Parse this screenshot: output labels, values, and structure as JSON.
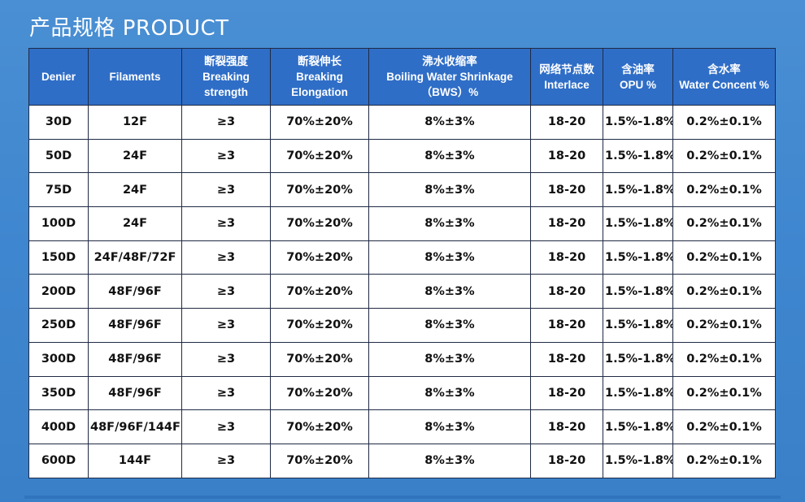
{
  "page_title": "产品规格 PRODUCT",
  "columns": [
    {
      "lines": [
        "Denier"
      ]
    },
    {
      "lines": [
        "Filaments"
      ]
    },
    {
      "lines": [
        "断裂强度",
        "Breaking",
        "strength"
      ]
    },
    {
      "lines": [
        "断裂伸长",
        "Breaking",
        "Elongation"
      ]
    },
    {
      "lines": [
        "沸水收缩率",
        "Boiling Water Shrinkage",
        "（BWS）%"
      ]
    },
    {
      "lines": [
        "网络节点数",
        "Interlace"
      ]
    },
    {
      "lines": [
        "含油率",
        "OPU %"
      ]
    },
    {
      "lines": [
        "含水率",
        "Water Concent %"
      ]
    }
  ],
  "rows": [
    [
      "30D",
      "12F",
      "≥3",
      "70%±20%",
      "8%±3%",
      "18-20",
      "1.5%-1.8%",
      "0.2%±0.1%"
    ],
    [
      "50D",
      "24F",
      "≥3",
      "70%±20%",
      "8%±3%",
      "18-20",
      "1.5%-1.8%",
      "0.2%±0.1%"
    ],
    [
      "75D",
      "24F",
      "≥3",
      "70%±20%",
      "8%±3%",
      "18-20",
      "1.5%-1.8%",
      "0.2%±0.1%"
    ],
    [
      "100D",
      "24F",
      "≥3",
      "70%±20%",
      "8%±3%",
      "18-20",
      "1.5%-1.8%",
      "0.2%±0.1%"
    ],
    [
      "150D",
      "24F/48F/72F",
      "≥3",
      "70%±20%",
      "8%±3%",
      "18-20",
      "1.5%-1.8%",
      "0.2%±0.1%"
    ],
    [
      "200D",
      "48F/96F",
      "≥3",
      "70%±20%",
      "8%±3%",
      "18-20",
      "1.5%-1.8%",
      "0.2%±0.1%"
    ],
    [
      "250D",
      "48F/96F",
      "≥3",
      "70%±20%",
      "8%±3%",
      "18-20",
      "1.5%-1.8%",
      "0.2%±0.1%"
    ],
    [
      "300D",
      "48F/96F",
      "≥3",
      "70%±20%",
      "8%±3%",
      "18-20",
      "1.5%-1.8%",
      "0.2%±0.1%"
    ],
    [
      "350D",
      "48F/96F",
      "≥3",
      "70%±20%",
      "8%±3%",
      "18-20",
      "1.5%-1.8%",
      "0.2%±0.1%"
    ],
    [
      "400D",
      "48F/96F/144F",
      "≥3",
      "70%±20%",
      "8%±3%",
      "18-20",
      "1.5%-1.8%",
      "0.2%±0.1%"
    ],
    [
      "600D",
      "144F",
      "≥3",
      "70%±20%",
      "8%±3%",
      "18-20",
      "1.5%-1.8%",
      "0.2%±0.1%"
    ]
  ]
}
